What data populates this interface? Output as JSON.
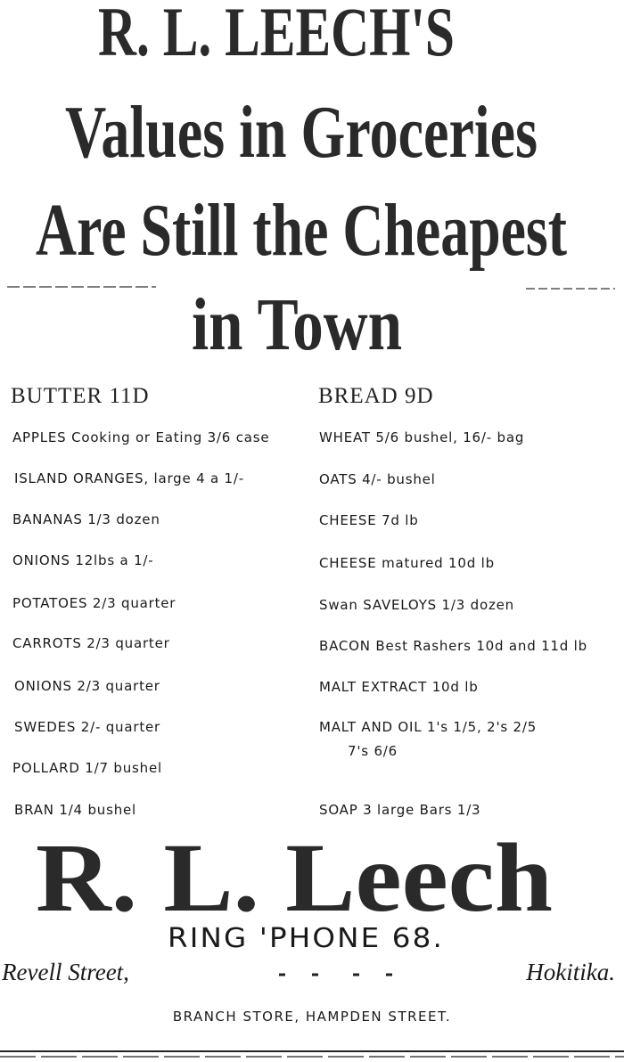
{
  "header": {
    "lines": [
      "R. L. LEECH'S",
      "Values in Groceries",
      "Are Still the Cheapest",
      "in Town"
    ]
  },
  "columns": [
    {
      "heading": "BUTTER 11D",
      "items": [
        "APPLES Cooking or Eating 3/6 case",
        "ISLAND ORANGES, large 4 a 1/-",
        "BANANAS 1/3 dozen",
        "ONIONS 12lbs a 1/-",
        "POTATOES 2/3 quarter",
        "CARROTS 2/3 quarter",
        "ONIONS 2/3 quarter",
        "SWEDES 2/- quarter",
        "POLLARD 1/7 bushel",
        "BRAN 1/4 bushel"
      ]
    },
    {
      "heading": "BREAD 9D",
      "items": [
        "WHEAT 5/6 bushel, 16/- bag",
        "OATS 4/- bushel",
        "CHEESE 7d lb",
        "CHEESE matured 10d lb",
        "Swan SAVELOYS 1/3 dozen",
        "BACON Best Rashers 10d and 11d lb",
        "MALT EXTRACT 10d lb",
        "MALT AND OIL 1's 1/5, 2's 2/5",
        "7's 6/6",
        "SOAP 3 large Bars 1/3"
      ]
    }
  ],
  "footer": {
    "name": "R. L. Leech",
    "phone": "RING 'PHONE 68.",
    "street": "Revell Street,",
    "town": "Hokitika.",
    "branch": "BRANCH STORE, HAMPDEN STREET."
  }
}
